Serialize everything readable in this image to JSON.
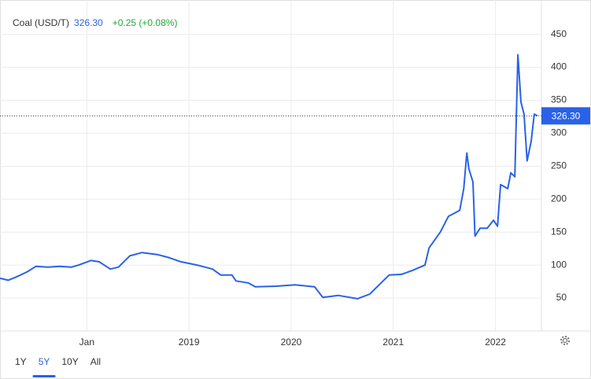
{
  "chart_data": {
    "type": "line",
    "title": "Coal (USD/T)",
    "last_value": 326.3,
    "last_value_label": "326.30",
    "change": "+0.25 (+0.08%)",
    "ranges": [
      "1Y",
      "5Y",
      "10Y",
      "All"
    ],
    "selected_range": "5Y",
    "x": [
      2017.15,
      2017.23,
      2017.31,
      2017.42,
      2017.5,
      2017.62,
      2017.73,
      2017.85,
      2017.92,
      2018.04,
      2018.12,
      2018.23,
      2018.31,
      2018.42,
      2018.54,
      2018.69,
      2018.81,
      2018.92,
      2019.08,
      2019.23,
      2019.31,
      2019.42,
      2019.46,
      2019.58,
      2019.65,
      2019.85,
      2020.04,
      2020.23,
      2020.31,
      2020.46,
      2020.65,
      2020.77,
      2020.88,
      2020.96,
      2021.08,
      2021.19,
      2021.31,
      2021.35,
      2021.46,
      2021.54,
      2021.65,
      2021.69,
      2021.72,
      2021.74,
      2021.78,
      2021.8,
      2021.85,
      2021.92,
      2021.98,
      2022.02,
      2022.05,
      2022.12,
      2022.15,
      2022.19,
      2022.22,
      2022.25,
      2022.28,
      2022.31,
      2022.35,
      2022.38,
      2022.41
    ],
    "series": [
      {
        "name": "Coal (USD/T)",
        "color": "#2962e8",
        "values": [
          80,
          77,
          82,
          90,
          98,
          97,
          98,
          97,
          100,
          107,
          105,
          94,
          97,
          114,
          119,
          116,
          111,
          105,
          100,
          94,
          85,
          85,
          76,
          73,
          67,
          68,
          70,
          67,
          51,
          54,
          49,
          56,
          73,
          85,
          86,
          92,
          100,
          126,
          150,
          174,
          183,
          216,
          270,
          246,
          226,
          144,
          156,
          156,
          168,
          159,
          222,
          216,
          240,
          234,
          419,
          347,
          329,
          258,
          288,
          329,
          326.3
        ]
      }
    ],
    "xlim": [
      2017.15,
      2022.45
    ],
    "xticks": [
      {
        "value": 2018,
        "label": "Jan"
      },
      2019,
      2020,
      2021,
      2022
    ],
    "ylim": [
      0,
      502
    ],
    "yticks": [
      50,
      100,
      150,
      200,
      250,
      300,
      350,
      400,
      450
    ],
    "grid": true
  }
}
